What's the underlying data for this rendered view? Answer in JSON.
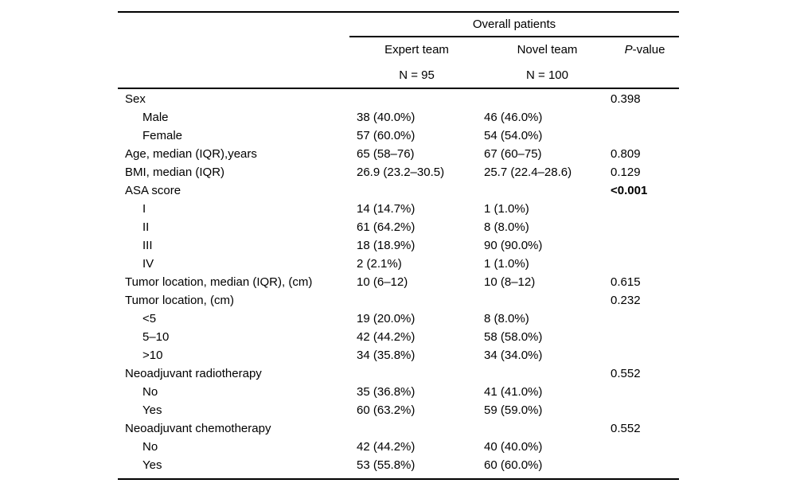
{
  "page": {
    "background": "#ffffff",
    "text_color": "#000000",
    "rule_color": "#000000"
  },
  "table": {
    "spanner_label": "Overall patients",
    "p_value_header": {
      "italic_part": "P",
      "rest_part": "-value"
    },
    "group_columns": [
      {
        "label": "Expert team",
        "n_label": "N = 95"
      },
      {
        "label": "Novel team",
        "n_label": "N = 100"
      }
    ],
    "rows": [
      {
        "label": "Sex",
        "indent": 0,
        "expert": "",
        "novel": "",
        "p": "0.398",
        "p_bold": false
      },
      {
        "label": "Male",
        "indent": 1,
        "expert": "38 (40.0%)",
        "novel": "46 (46.0%)",
        "p": "",
        "p_bold": false
      },
      {
        "label": "Female",
        "indent": 1,
        "expert": "57 (60.0%)",
        "novel": "54 (54.0%)",
        "p": "",
        "p_bold": false
      },
      {
        "label": "Age, median (IQR),years",
        "indent": 0,
        "expert": "65 (58–76)",
        "novel": "67 (60–75)",
        "p": "0.809",
        "p_bold": false
      },
      {
        "label": "BMI, median (IQR)",
        "indent": 0,
        "expert": "26.9 (23.2–30.5)",
        "novel": "25.7 (22.4–28.6)",
        "p": "0.129",
        "p_bold": false
      },
      {
        "label": "ASA score",
        "indent": 0,
        "expert": "",
        "novel": "",
        "p": "<0.001",
        "p_bold": true
      },
      {
        "label": "I",
        "indent": 1,
        "expert": "14 (14.7%)",
        "novel": "1 (1.0%)",
        "p": "",
        "p_bold": false
      },
      {
        "label": "II",
        "indent": 1,
        "expert": "61 (64.2%)",
        "novel": "8 (8.0%)",
        "p": "",
        "p_bold": false
      },
      {
        "label": "III",
        "indent": 1,
        "expert": "18 (18.9%)",
        "novel": "90 (90.0%)",
        "p": "",
        "p_bold": false
      },
      {
        "label": "IV",
        "indent": 1,
        "expert": "2 (2.1%)",
        "novel": "1 (1.0%)",
        "p": "",
        "p_bold": false
      },
      {
        "label": "Tumor location, median (IQR), (cm)",
        "indent": 0,
        "expert": "10 (6–12)",
        "novel": "10 (8–12)",
        "p": "0.615",
        "p_bold": false
      },
      {
        "label": "Tumor location, (cm)",
        "indent": 0,
        "expert": "",
        "novel": "",
        "p": "0.232",
        "p_bold": false
      },
      {
        "label": "<5",
        "indent": 1,
        "expert": "19 (20.0%)",
        "novel": "8 (8.0%)",
        "p": "",
        "p_bold": false
      },
      {
        "label": "5–10",
        "indent": 1,
        "expert": "42 (44.2%)",
        "novel": "58 (58.0%)",
        "p": "",
        "p_bold": false
      },
      {
        "label": ">10",
        "indent": 1,
        "expert": "34 (35.8%)",
        "novel": "34 (34.0%)",
        "p": "",
        "p_bold": false
      },
      {
        "label": "Neoadjuvant radiotherapy",
        "indent": 0,
        "expert": "",
        "novel": "",
        "p": "0.552",
        "p_bold": false
      },
      {
        "label": "No",
        "indent": 1,
        "expert": "35 (36.8%)",
        "novel": "41 (41.0%)",
        "p": "",
        "p_bold": false
      },
      {
        "label": "Yes",
        "indent": 1,
        "expert": "60 (63.2%)",
        "novel": "59 (59.0%)",
        "p": "",
        "p_bold": false
      },
      {
        "label": "Neoadjuvant chemotherapy",
        "indent": 0,
        "expert": "",
        "novel": "",
        "p": "0.552",
        "p_bold": false
      },
      {
        "label": "No",
        "indent": 1,
        "expert": "42 (44.2%)",
        "novel": "40 (40.0%)",
        "p": "",
        "p_bold": false
      },
      {
        "label": "Yes",
        "indent": 1,
        "expert": "53 (55.8%)",
        "novel": "60 (60.0%)",
        "p": "",
        "p_bold": false
      }
    ]
  }
}
